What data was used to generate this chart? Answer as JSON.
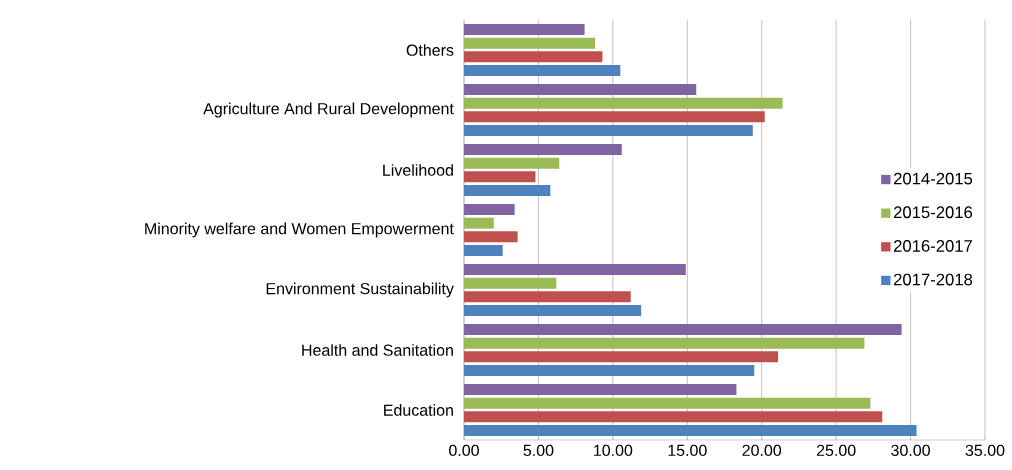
{
  "chart_data": {
    "type": "bar",
    "orientation": "horizontal",
    "categories": [
      "Others",
      "Agriculture And Rural Development",
      "Livelihood",
      "Minority welfare and Women Empowerment",
      "Environment Sustainability",
      "Health and Sanitation",
      "Education"
    ],
    "series": [
      {
        "name": "2014-2015",
        "color": "#8064a2",
        "values": [
          8.1,
          15.6,
          10.6,
          3.4,
          14.9,
          29.4,
          18.3
        ]
      },
      {
        "name": "2015-2016",
        "color": "#9bbb59",
        "values": [
          8.8,
          21.4,
          6.4,
          2.0,
          6.2,
          26.9,
          27.3
        ]
      },
      {
        "name": "2016-2017",
        "color": "#c0504d",
        "values": [
          9.3,
          20.2,
          4.8,
          3.6,
          11.2,
          21.1,
          28.1
        ]
      },
      {
        "name": "2017-2018",
        "color": "#4f81bd",
        "values": [
          10.5,
          19.4,
          5.8,
          2.6,
          11.9,
          19.5,
          30.4
        ]
      }
    ],
    "xlim": [
      0,
      35
    ],
    "xticks": [
      {
        "value": 0,
        "label": "0.00"
      },
      {
        "value": 5,
        "label": "5.00"
      },
      {
        "value": 10,
        "label": "10.00"
      },
      {
        "value": 15,
        "label": "15.00"
      },
      {
        "value": 20,
        "label": "20.00"
      },
      {
        "value": 25,
        "label": "25.00"
      },
      {
        "value": 30,
        "label": "30.00"
      },
      {
        "value": 35,
        "label": "35.00"
      }
    ],
    "grid": "x",
    "legend": "right"
  }
}
